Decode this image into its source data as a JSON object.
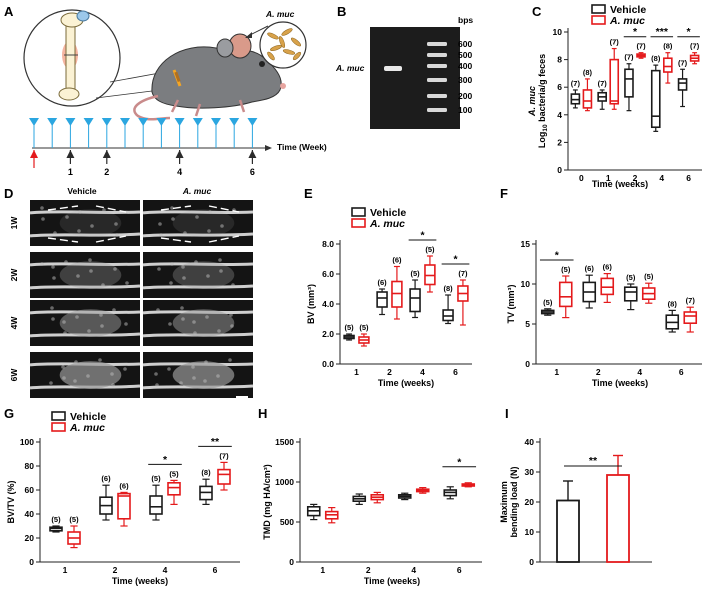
{
  "colors": {
    "vehicle": "#1a1a1a",
    "amuc": "#e41a1c",
    "arrow_blue": "#2ba6e0",
    "arrow_red": "#e41a1c",
    "arrow_black": "#2b2b2b"
  },
  "panel_letters": {
    "a": "A",
    "b": "B",
    "c": "C",
    "d": "D",
    "e": "E",
    "f": "F",
    "g": "G",
    "h": "H",
    "i": "I"
  },
  "panel_a": {
    "bacteria_label": "A. muc",
    "timeline_label": "Time (Week)",
    "week_marks": [
      "1",
      "2",
      "4",
      "6"
    ]
  },
  "panel_b": {
    "band_label": "A. muc",
    "unit": "bps",
    "ladder": [
      "600",
      "500",
      "400",
      "300",
      "200",
      "100"
    ]
  },
  "panel_d": {
    "columns": [
      "Vehicle",
      "A. muc"
    ],
    "rows": [
      "1W",
      "2W",
      "4W",
      "6W"
    ]
  },
  "chart_data": [
    {
      "id": "C",
      "type": "box",
      "legend": [
        "Vehicle",
        "A. muc"
      ],
      "xlabel": "Time (weeks)",
      "ylabel_italic": "A. muc",
      "ylabel": "Log10 bacteria/g feces",
      "ylabel_prefix": "Log",
      "ylabel_sub": "10",
      "ylabel_suffix": " bacteria/g feces",
      "ylim": [
        0,
        10
      ],
      "yticks": [
        "0",
        "2",
        "4",
        "6",
        "8",
        "10"
      ],
      "categories": [
        "0",
        "1",
        "2",
        "4",
        "6"
      ],
      "series": [
        {
          "name": "Vehicle",
          "boxes": [
            {
              "min": 4.5,
              "q1": 4.8,
              "med": 5.1,
              "q3": 5.5,
              "max": 5.8,
              "n": "(7)"
            },
            {
              "min": 4.4,
              "q1": 5.0,
              "med": 5.3,
              "q3": 5.6,
              "max": 5.8,
              "n": "(7)"
            },
            {
              "min": 4.3,
              "q1": 5.3,
              "med": 6.6,
              "q3": 7.3,
              "max": 7.7,
              "n": "(7)"
            },
            {
              "min": 2.8,
              "q1": 3.1,
              "med": 3.9,
              "q3": 7.2,
              "max": 7.6,
              "n": "(8)"
            },
            {
              "min": 4.6,
              "q1": 5.8,
              "med": 6.3,
              "q3": 6.6,
              "max": 7.3,
              "n": "(7)"
            }
          ]
        },
        {
          "name": "A. muc",
          "boxes": [
            {
              "min": 4.3,
              "q1": 4.5,
              "med": 5.0,
              "q3": 5.8,
              "max": 6.6,
              "n": "(8)"
            },
            {
              "min": 4.4,
              "q1": 4.8,
              "med": 5.0,
              "q3": 8.0,
              "max": 8.8,
              "n": "(7)"
            },
            {
              "min": 8.1,
              "q1": 8.2,
              "med": 8.3,
              "q3": 8.4,
              "max": 8.5,
              "n": "(7)"
            },
            {
              "min": 6.3,
              "q1": 7.1,
              "med": 7.5,
              "q3": 8.1,
              "max": 8.5,
              "n": "(8)"
            },
            {
              "min": 7.7,
              "q1": 7.9,
              "med": 8.1,
              "q3": 8.3,
              "max": 8.5,
              "n": "(7)"
            }
          ]
        }
      ],
      "significance": [
        {
          "category": "2",
          "label": "*"
        },
        {
          "category": "4",
          "label": "***"
        },
        {
          "category": "6",
          "label": "*"
        }
      ]
    },
    {
      "id": "E",
      "type": "box",
      "legend": [
        "Vehicle",
        "A. muc"
      ],
      "xlabel": "Time (weeks)",
      "ylabel": "BV (mm³)",
      "ylim": [
        0,
        8
      ],
      "yticks": [
        "0.0",
        "2.0",
        "4.0",
        "6.0",
        "8.0"
      ],
      "categories": [
        "1",
        "2",
        "4",
        "6"
      ],
      "series": [
        {
          "name": "Vehicle",
          "boxes": [
            {
              "min": 1.6,
              "q1": 1.7,
              "med": 1.8,
              "q3": 1.9,
              "max": 2.0,
              "n": "(5)"
            },
            {
              "min": 3.3,
              "q1": 3.8,
              "med": 4.4,
              "q3": 4.8,
              "max": 5.0,
              "n": "(6)"
            },
            {
              "min": 3.1,
              "q1": 3.5,
              "med": 4.4,
              "q3": 5.0,
              "max": 5.6,
              "n": "(5)"
            },
            {
              "min": 2.7,
              "q1": 2.9,
              "med": 3.2,
              "q3": 3.6,
              "max": 4.6,
              "n": "(8)"
            }
          ]
        },
        {
          "name": "A. muc",
          "boxes": [
            {
              "min": 1.2,
              "q1": 1.4,
              "med": 1.6,
              "q3": 1.8,
              "max": 2.0,
              "n": "(5)"
            },
            {
              "min": 3.0,
              "q1": 3.8,
              "med": 4.7,
              "q3": 5.5,
              "max": 6.5,
              "n": "(6)"
            },
            {
              "min": 4.8,
              "q1": 5.3,
              "med": 5.9,
              "q3": 6.6,
              "max": 7.2,
              "n": "(5)"
            },
            {
              "min": 2.6,
              "q1": 4.2,
              "med": 4.7,
              "q3": 5.2,
              "max": 5.6,
              "n": "(7)"
            }
          ]
        }
      ],
      "significance": [
        {
          "category": "4",
          "label": "*"
        },
        {
          "category": "6",
          "label": "*"
        }
      ]
    },
    {
      "id": "F",
      "type": "box",
      "xlabel": "Time (weeks)",
      "ylabel": "TV (mm³)",
      "ylim": [
        0,
        15
      ],
      "yticks": [
        "0",
        "5",
        "10",
        "15"
      ],
      "categories": [
        "1",
        "2",
        "4",
        "6"
      ],
      "series": [
        {
          "name": "Vehicle",
          "boxes": [
            {
              "min": 6.1,
              "q1": 6.3,
              "med": 6.5,
              "q3": 6.7,
              "max": 6.9,
              "n": "(5)"
            },
            {
              "min": 7.0,
              "q1": 7.8,
              "med": 9.0,
              "q3": 10.2,
              "max": 11.1,
              "n": "(6)"
            },
            {
              "min": 6.8,
              "q1": 7.9,
              "med": 9.0,
              "q3": 9.6,
              "max": 10.0,
              "n": "(5)"
            },
            {
              "min": 4.0,
              "q1": 4.4,
              "med": 5.2,
              "q3": 6.1,
              "max": 6.7,
              "n": "(8)"
            }
          ]
        },
        {
          "name": "A. muc",
          "boxes": [
            {
              "min": 5.8,
              "q1": 7.2,
              "med": 8.4,
              "q3": 10.2,
              "max": 11.0,
              "n": "(5)"
            },
            {
              "min": 7.7,
              "q1": 8.7,
              "med": 9.6,
              "q3": 10.7,
              "max": 11.3,
              "n": "(6)"
            },
            {
              "min": 7.6,
              "q1": 8.1,
              "med": 8.8,
              "q3": 9.5,
              "max": 10.1,
              "n": "(5)"
            },
            {
              "min": 4.0,
              "q1": 5.1,
              "med": 6.0,
              "q3": 6.5,
              "max": 7.1,
              "n": "(7)"
            }
          ]
        }
      ],
      "significance": [
        {
          "category": "1",
          "label": "*"
        }
      ]
    },
    {
      "id": "G",
      "type": "box",
      "legend": [
        "Vehicle",
        "A. muc"
      ],
      "xlabel": "Time (weeks)",
      "ylabel": "BV/TV (%)",
      "ylim": [
        0,
        100
      ],
      "yticks": [
        "0",
        "20",
        "40",
        "60",
        "80",
        "100"
      ],
      "categories": [
        "1",
        "2",
        "4",
        "6"
      ],
      "series": [
        {
          "name": "Vehicle",
          "boxes": [
            {
              "min": 25,
              "q1": 26,
              "med": 28,
              "q3": 29,
              "max": 30,
              "n": "(5)"
            },
            {
              "min": 35,
              "q1": 40,
              "med": 47,
              "q3": 54,
              "max": 64,
              "n": "(6)"
            },
            {
              "min": 35,
              "q1": 40,
              "med": 46,
              "q3": 55,
              "max": 64,
              "n": "(5)"
            },
            {
              "min": 48,
              "q1": 52,
              "med": 58,
              "q3": 63,
              "max": 69,
              "n": "(8)"
            }
          ]
        },
        {
          "name": "A. muc",
          "boxes": [
            {
              "min": 12,
              "q1": 15,
              "med": 20,
              "q3": 25,
              "max": 30,
              "n": "(5)"
            },
            {
              "min": 30,
              "q1": 36,
              "med": 55,
              "q3": 57,
              "max": 58,
              "n": "(6)"
            },
            {
              "min": 48,
              "q1": 56,
              "med": 62,
              "q3": 66,
              "max": 68,
              "n": "(5)"
            },
            {
              "min": 60,
              "q1": 65,
              "med": 73,
              "q3": 77,
              "max": 83,
              "n": "(7)"
            }
          ]
        }
      ],
      "significance": [
        {
          "category": "4",
          "label": "*"
        },
        {
          "category": "6",
          "label": "**"
        }
      ]
    },
    {
      "id": "H",
      "type": "box",
      "xlabel": "Time (weeks)",
      "ylabel": "TMD (mg HA/cm³)",
      "ylim": [
        0,
        1500
      ],
      "yticks": [
        "0",
        "500",
        "1000",
        "1500"
      ],
      "categories": [
        "1",
        "2",
        "4",
        "6"
      ],
      "series": [
        {
          "name": "Vehicle",
          "boxes": [
            {
              "min": 530,
              "q1": 580,
              "med": 640,
              "q3": 690,
              "max": 720
            },
            {
              "min": 720,
              "q1": 760,
              "med": 790,
              "q3": 820,
              "max": 850
            },
            {
              "min": 780,
              "q1": 800,
              "med": 820,
              "q3": 840,
              "max": 860
            },
            {
              "min": 790,
              "q1": 830,
              "med": 870,
              "q3": 900,
              "max": 940
            }
          ]
        },
        {
          "name": "A. muc",
          "boxes": [
            {
              "min": 490,
              "q1": 540,
              "med": 590,
              "q3": 630,
              "max": 680
            },
            {
              "min": 740,
              "q1": 780,
              "med": 810,
              "q3": 840,
              "max": 870
            },
            {
              "min": 860,
              "q1": 880,
              "med": 890,
              "q3": 910,
              "max": 930
            },
            {
              "min": 940,
              "q1": 950,
              "med": 960,
              "q3": 975,
              "max": 990
            }
          ]
        }
      ],
      "significance": [
        {
          "category": "6",
          "label": "*"
        }
      ]
    },
    {
      "id": "I",
      "type": "bar",
      "ylabel": "Maximum bending load (N)",
      "ylabel_line1": "Maximum",
      "ylabel_line2": "bending load (N)",
      "ylim": [
        0,
        40
      ],
      "yticks": [
        "0",
        "10",
        "20",
        "30",
        "40"
      ],
      "series": [
        {
          "name": "Vehicle",
          "value": 20.5,
          "error": 6.5
        },
        {
          "name": "A. muc",
          "value": 29.0,
          "error": 6.5
        }
      ],
      "significance": [
        {
          "label": "**"
        }
      ]
    }
  ]
}
